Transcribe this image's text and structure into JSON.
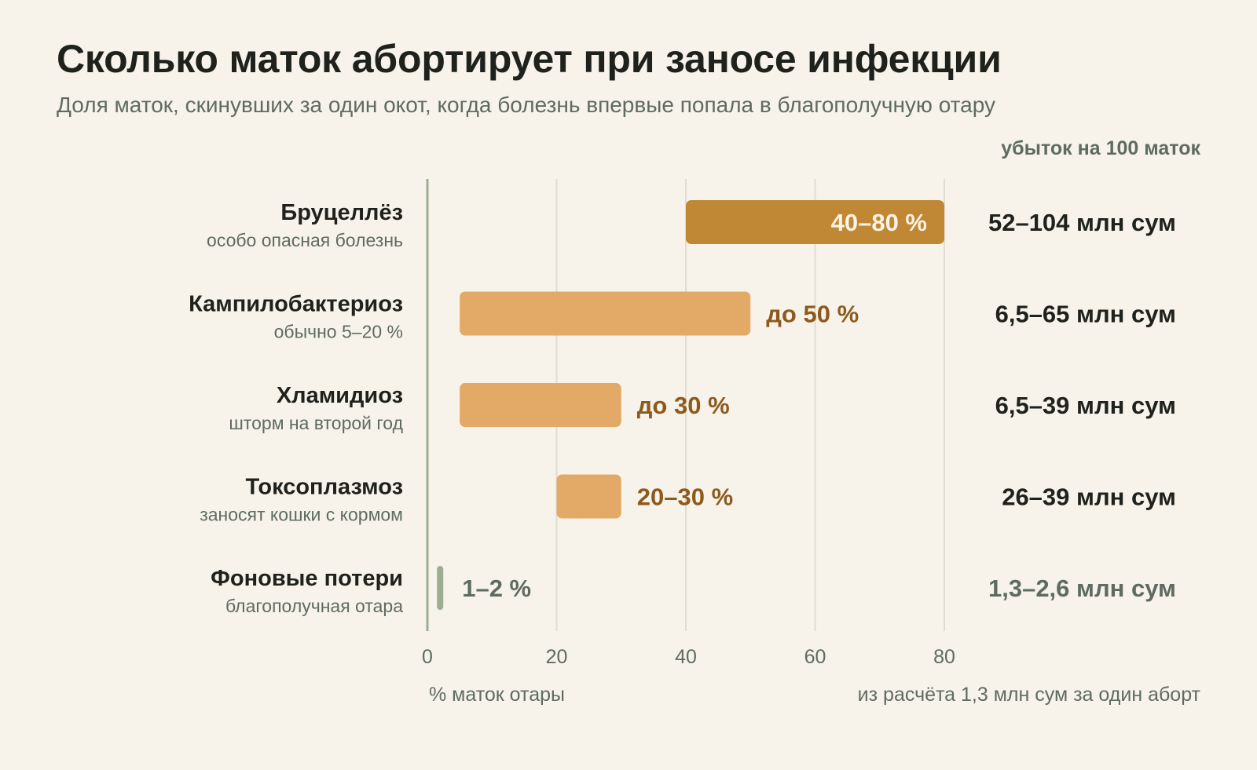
{
  "title": "Сколько маток абортирует при заносе инфекции",
  "subtitle": "Доля маток, скинувших за один окот, когда болезнь впервые попала в благополучную отару",
  "loss_header": "убыток на 100 маток",
  "x_axis_title": "% маток отары",
  "loss_note": "из расчёта 1,3 млн сум за один аборт",
  "colors": {
    "background": "#f7f3ea",
    "bar_dark": "#c08734",
    "bar_light": "#e2aa66",
    "bar_baseline": "#9bae91",
    "axis": "#9bae91",
    "grid": "#e0dcd0",
    "label_dark": "#1f211d",
    "label_brown": "#8c5a1c",
    "label_muted": "#5f6b61"
  },
  "chart_data": {
    "type": "bar",
    "orientation": "horizontal",
    "bar_kind": "range",
    "x_label": "% маток отары",
    "xlim": [
      0,
      80
    ],
    "x_ticks": [
      0,
      20,
      40,
      60,
      80
    ],
    "grid": true,
    "categories": [
      {
        "name": "Бруцеллёз",
        "note": "особо опасная болезнь",
        "start": 40,
        "end": 80,
        "value_label": "40–80 %",
        "loss": "52–104 млн сум",
        "style": "dark",
        "label_inside": true
      },
      {
        "name": "Кампилобактериоз",
        "note": "обычно 5–20 %",
        "start": 5,
        "end": 50,
        "value_label": "до 50 %",
        "loss": "6,5–65 млн сум",
        "style": "light",
        "label_inside": false
      },
      {
        "name": "Хламидиоз",
        "note": "шторм на второй год",
        "start": 5,
        "end": 30,
        "value_label": "до 30 %",
        "loss": "6,5–39 млн сум",
        "style": "light",
        "label_inside": false
      },
      {
        "name": "Токсоплазмоз",
        "note": "заносят кошки с кормом",
        "start": 20,
        "end": 30,
        "value_label": "20–30 %",
        "loss": "26–39 млн сум",
        "style": "light",
        "label_inside": false
      },
      {
        "name": "Фоновые потери",
        "note": "благополучная отара",
        "start": 1,
        "end": 2,
        "value_label": "1–2 %",
        "loss": "1,3–2,6 млн сум",
        "style": "baseline",
        "label_inside": false
      }
    ]
  }
}
